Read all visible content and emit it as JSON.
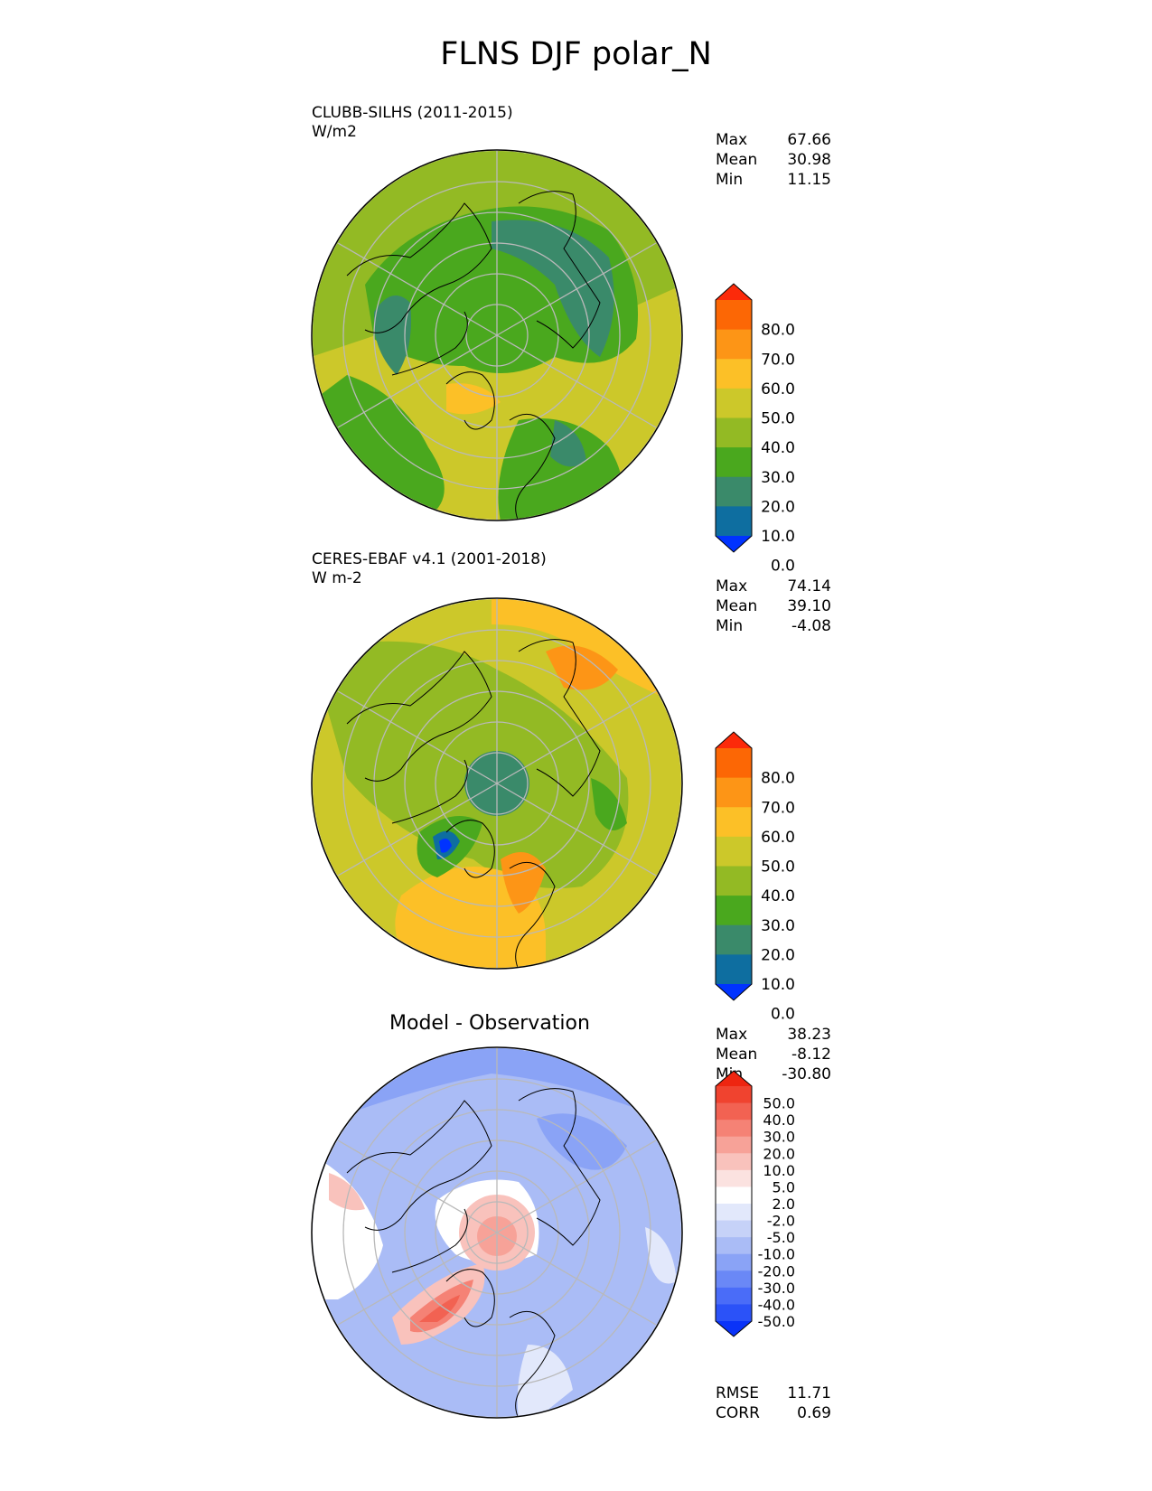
{
  "figure": {
    "title": "FLNS DJF polar_N"
  },
  "panels": [
    {
      "id": "model",
      "label_line1": "CLUBB-SILHS (2011-2015)",
      "label_line2": "W/m2",
      "stats": [
        {
          "name": "Max",
          "value": "67.66"
        },
        {
          "name": "Mean",
          "value": "30.98"
        },
        {
          "name": "Min",
          "value": "11.15"
        }
      ],
      "colorbar": {
        "ticks": [
          "80.0",
          "70.0",
          "60.0",
          "50.0",
          "40.0",
          "30.0",
          "20.0",
          "10.0",
          "0.0"
        ],
        "colors": [
          "#0033ff",
          "#0e6ea0",
          "#3a8a6a",
          "#4aa81e",
          "#93ba24",
          "#ccc82a",
          "#fcc027",
          "#fd9516",
          "#fc6705",
          "#fc2a0a"
        ]
      },
      "field_level": {
        "center": 22,
        "mid": 26,
        "outer": 42
      }
    },
    {
      "id": "obs",
      "label_line1": "CERES-EBAF v4.1 (2001-2018)",
      "label_line2": "W m-2",
      "stats": [
        {
          "name": "Max",
          "value": "74.14"
        },
        {
          "name": "Mean",
          "value": "39.10"
        },
        {
          "name": "Min",
          "value": "-4.08"
        }
      ],
      "colorbar": {
        "ticks": [
          "80.0",
          "70.0",
          "60.0",
          "50.0",
          "40.0",
          "30.0",
          "20.0",
          "10.0",
          "0.0"
        ],
        "colors": [
          "#0033ff",
          "#0e6ea0",
          "#3a8a6a",
          "#4aa81e",
          "#93ba24",
          "#ccc82a",
          "#fcc027",
          "#fd9516",
          "#fc6705",
          "#fc2a0a"
        ]
      },
      "field_level": {
        "center": 18,
        "mid": 40,
        "outer": 45
      }
    },
    {
      "id": "diff",
      "center_title": "Model - Observation",
      "stats": [
        {
          "name": "Max",
          "value": "38.23"
        },
        {
          "name": "Mean",
          "value": "-8.12"
        },
        {
          "name": "Min",
          "value": "-30.80"
        }
      ],
      "colorbar": {
        "ticks": [
          "50.0",
          "40.0",
          "30.0",
          "20.0",
          "10.0",
          "5.0",
          "2.0",
          "-2.0",
          "-5.0",
          "-10.0",
          "-20.0",
          "-30.0",
          "-40.0",
          "-50.0"
        ],
        "colors": [
          "#0a33f8",
          "#2b52f8",
          "#4a6cf8",
          "#6a88f6",
          "#8aa3f6",
          "#aabcf6",
          "#c6d2f8",
          "#e2e8fb",
          "#ffffff",
          "#fbe2e0",
          "#f9c2bc",
          "#f7a298",
          "#f58275",
          "#f26252",
          "#f0432f",
          "#ee2510"
        ]
      },
      "metrics": [
        {
          "name": "RMSE",
          "value": "11.71"
        },
        {
          "name": "CORR",
          "value": "0.69"
        }
      ]
    }
  ]
}
